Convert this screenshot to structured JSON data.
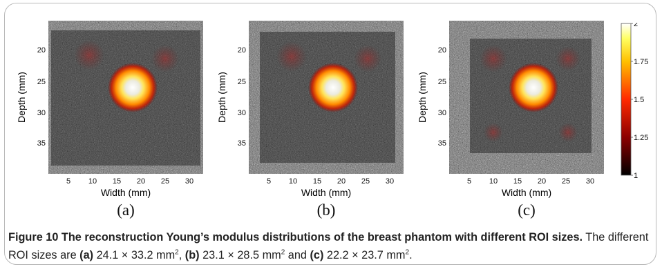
{
  "figure": {
    "panels": [
      {
        "id": "a",
        "label": "(a)"
      },
      {
        "id": "b",
        "label": "(b)"
      },
      {
        "id": "c",
        "label": "(c)"
      }
    ],
    "axes": {
      "xlabel": "Width (mm)",
      "ylabel": "Depth (mm)",
      "xticks": [
        "5",
        "10",
        "15",
        "20",
        "25",
        "30"
      ],
      "yticks": [
        "20",
        "25",
        "30",
        "35"
      ]
    },
    "colorbar": {
      "ticks": [
        "2",
        "1.75",
        "1.5",
        "1.25",
        "1"
      ],
      "min": 1,
      "max": 2
    }
  },
  "caption": {
    "title": "Figure 10 The reconstruction Young’s modulus distributions of the breast phantom with different ROI sizes.",
    "text_intro": " The different ROI sizes are ",
    "a_label": "(a)",
    "a_value": " 24.1 × 33.2 mm",
    "b_label": "(b)",
    "b_value": " 23.1 × 28.5 mm",
    "and_text": " and ",
    "c_label": "(c)",
    "c_value": " 22.2 × 23.7 mm",
    "sup": "2",
    "comma": ",",
    "period": "."
  },
  "colors": {
    "frame_border": "#b9b9b9",
    "inclusion_outer": "#e23a00",
    "inclusion_mid": "#ffd21c",
    "inclusion_core": "#f5f5f5"
  }
}
